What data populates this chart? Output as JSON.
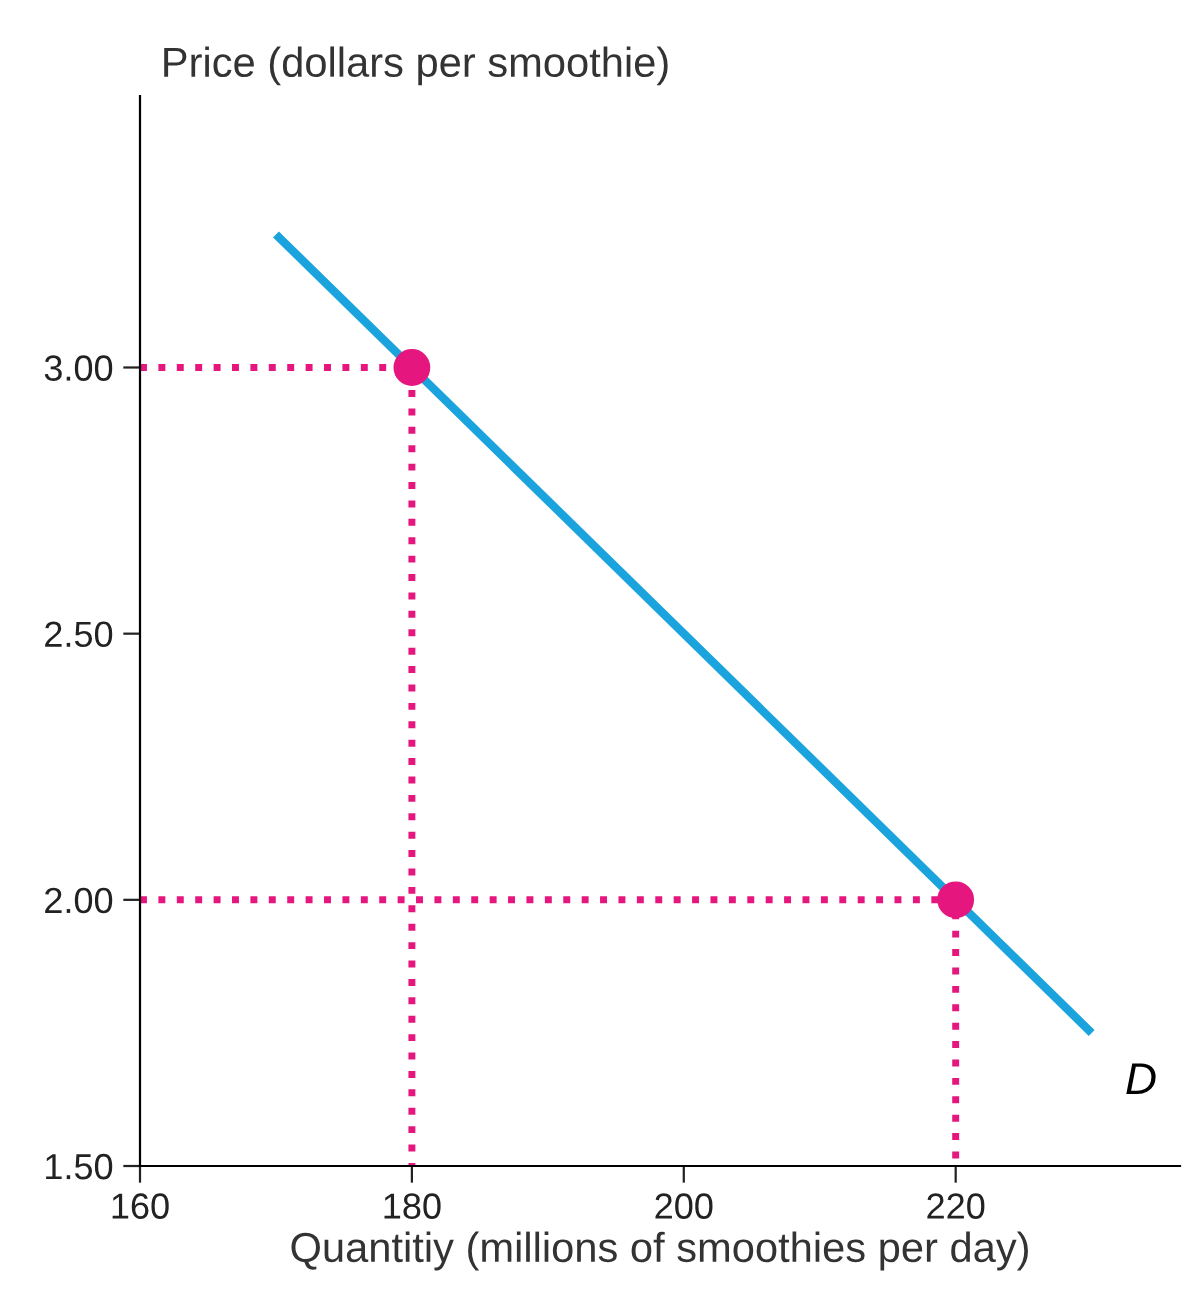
{
  "chart_data": {
    "type": "line",
    "xlabel": "Quantitiy (millions of smoothies per day)",
    "ylabel": "Price (dollars per smoothie)",
    "xlim": [
      160,
      236.5
    ],
    "ylim": [
      1.5,
      3.51
    ],
    "xticks": [
      160,
      180,
      200,
      220
    ],
    "yticks": [
      {
        "value": 1.5,
        "label": "1.50"
      },
      {
        "value": 2.0,
        "label": "2.00"
      },
      {
        "value": 2.5,
        "label": "2.50"
      },
      {
        "value": 3.0,
        "label": "3.00"
      }
    ],
    "grid": false,
    "legend": false,
    "series": [
      {
        "color": "#1aa3dc",
        "x": [
          170,
          230
        ],
        "values": [
          3.25,
          1.75
        ],
        "line_style": "solid",
        "marker": "none"
      },
      {
        "type": "line",
        "color": "#e6167f",
        "x": [
          160,
          180,
          180
        ],
        "values": [
          3.0,
          3.0,
          1.5
        ],
        "line_style": "dotted",
        "marker": "none"
      },
      {
        "type": "line",
        "color": "#e6167f",
        "x": [
          160,
          220,
          220
        ],
        "values": [
          2.0,
          2.0,
          1.5
        ],
        "line_style": "dotted",
        "marker": "none"
      },
      {
        "type": "scatter",
        "color": "#e6167f",
        "x": [
          180,
          220
        ],
        "values": [
          3.0,
          2.0
        ],
        "marker": "circle"
      }
    ],
    "annotations": [
      {
        "text": "D",
        "x": 230,
        "y": 1.75
      }
    ]
  }
}
